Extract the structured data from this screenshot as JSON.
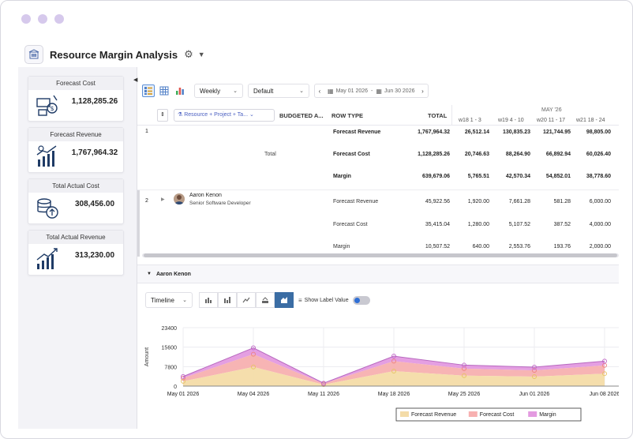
{
  "app": {
    "title": "Resource Margin Analysis"
  },
  "kpis": [
    {
      "title": "Forecast Cost",
      "value": "1,128,285.26",
      "icon": "cost-icon"
    },
    {
      "title": "Forecast Revenue",
      "value": "1,767,964.32",
      "icon": "revenue-icon"
    },
    {
      "title": "Total Actual Cost",
      "value": "308,456.00",
      "icon": "coins-icon"
    },
    {
      "title": "Total Actual Revenue",
      "value": "313,230.00",
      "icon": "growth-icon"
    }
  ],
  "toolbar": {
    "period": "Weekly",
    "view": "Default",
    "date_from": "May 01 2026",
    "date_sep": "-",
    "date_to": "Jun 30 2026"
  },
  "grid": {
    "group_by": "Resource + Project + Ta...",
    "headers": {
      "budgeted": "BUDGETED A...",
      "row_type": "ROW TYPE",
      "total": "TOTAL",
      "month": "MAY '26",
      "weeks": [
        "w18 1 - 3",
        "w19 4 - 10",
        "w20 11 - 17",
        "w21 18 - 24"
      ]
    },
    "groups": [
      {
        "index": "1",
        "label": "Total",
        "name": "",
        "role": "",
        "rows": [
          {
            "type": "Forecast Revenue",
            "total": "1,767,964.32",
            "weeks": [
              "26,512.14",
              "130,835.23",
              "121,744.95",
              "98,805.00"
            ]
          },
          {
            "type": "Forecast Cost",
            "total": "1,128,285.26",
            "weeks": [
              "20,746.63",
              "88,264.90",
              "66,892.94",
              "60,026.40"
            ]
          },
          {
            "type": "Margin",
            "total": "639,679.06",
            "weeks": [
              "5,765.51",
              "42,570.34",
              "54,852.01",
              "38,778.60"
            ]
          }
        ]
      },
      {
        "index": "2",
        "label": "",
        "name": "Aaron Kenon",
        "role": "Senior Software Developer",
        "rows": [
          {
            "type": "Forecast Revenue",
            "total": "45,922.56",
            "weeks": [
              "1,920.00",
              "7,661.28",
              "581.28",
              "6,000.00"
            ]
          },
          {
            "type": "Forecast Cost",
            "total": "35,415.04",
            "weeks": [
              "1,280.00",
              "5,107.52",
              "387.52",
              "4,000.00"
            ]
          },
          {
            "type": "Margin",
            "total": "10,507.52",
            "weeks": [
              "640.00",
              "2,553.76",
              "193.76",
              "2,000.00"
            ]
          }
        ]
      }
    ]
  },
  "detail": {
    "title": "Aaron Kenon",
    "mode": "Timeline",
    "show_label": "Show Label Value"
  },
  "chart_data": {
    "type": "area",
    "x": [
      "May 01 2026",
      "May 04 2026",
      "May 11 2026",
      "May 18 2026",
      "May 25 2026",
      "Jun 01 2026",
      "Jun 08 2026"
    ],
    "ylabel": "Amount",
    "yticks": [
      "0",
      "7800",
      "15600",
      "23400"
    ],
    "ylim": [
      0,
      23400
    ],
    "series": [
      {
        "name": "Forecast Revenue",
        "color": "#f4dca8",
        "values": [
          1920,
          7661,
          581,
          6000,
          4200,
          3800,
          5000
        ]
      },
      {
        "name": "Forecast Cost",
        "color": "#f7b0b0",
        "values": [
          1280,
          5108,
          388,
          4000,
          2800,
          2500,
          3300
        ]
      },
      {
        "name": "Margin",
        "color": "#e39ae0",
        "values": [
          640,
          2554,
          194,
          2000,
          1400,
          1300,
          1700
        ]
      }
    ],
    "legend": "bottom"
  }
}
